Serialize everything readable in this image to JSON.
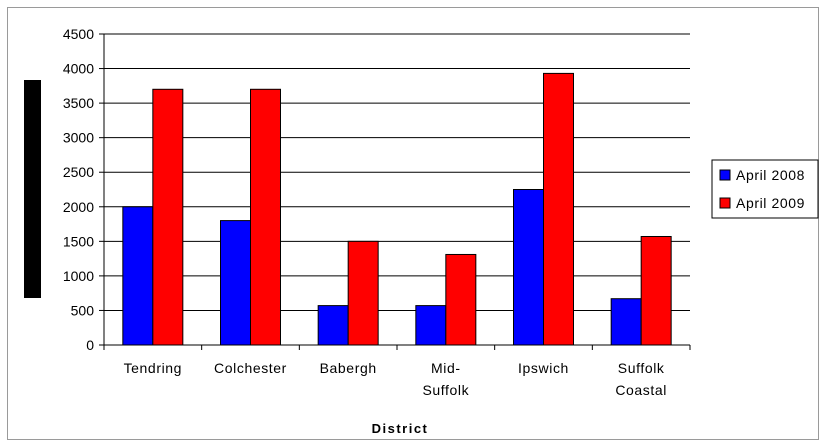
{
  "chart_data": {
    "type": "bar",
    "title": "",
    "xlabel": "District",
    "ylabel": "",
    "ylim": [
      0,
      4500
    ],
    "yticks": [
      0,
      500,
      1000,
      1500,
      2000,
      2500,
      3000,
      3500,
      4000,
      4500
    ],
    "grid": true,
    "legend_position": "right",
    "categories": [
      [
        "Tendring"
      ],
      [
        "Colchester"
      ],
      [
        "Babergh"
      ],
      [
        "Mid-",
        "Suffolk"
      ],
      [
        "Ipswich"
      ],
      [
        "Suffolk",
        "Coastal"
      ]
    ],
    "series": [
      {
        "name": "April 2008",
        "color": "#0000ff",
        "values": [
          2000,
          1800,
          570,
          570,
          2250,
          670
        ]
      },
      {
        "name": "April 2009",
        "color": "#ff0000",
        "values": [
          3700,
          3700,
          1500,
          1310,
          3930,
          1570
        ]
      }
    ]
  }
}
